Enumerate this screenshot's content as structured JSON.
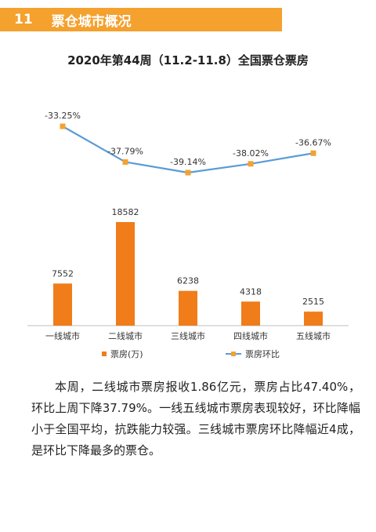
{
  "header": {
    "number": "11",
    "title": "票仓城市概况"
  },
  "chart_data": {
    "type": "bar",
    "title": "2020年第44周（11.2-11.8）全国票仓票房",
    "categories": [
      "一线城市",
      "二线城市",
      "三线城市",
      "四线城市",
      "五线城市"
    ],
    "series": [
      {
        "name": "票房(万)",
        "type": "bar",
        "values": [
          7552,
          18582,
          6238,
          4318,
          2515
        ],
        "labels": [
          "7552",
          "18582",
          "6238",
          "4318",
          "2515"
        ]
      },
      {
        "name": "票房环比",
        "type": "line",
        "values": [
          -33.25,
          -37.79,
          -39.14,
          -38.02,
          -36.67
        ],
        "labels": [
          "-33.25%",
          "-37.79%",
          "-39.14%",
          "-38.02%",
          "-36.67%"
        ]
      }
    ],
    "legend_position": "bottom",
    "grid": false,
    "colors": {
      "bar": "#f07d1a",
      "line": "#5b9bd5",
      "marker": "#f4a12e"
    }
  },
  "text": {
    "paragraph": "本周，二线城市票房报收1.86亿元，票房占比47.40%，环比上周下降37.79%。一线五线城市票房表现较好，环比降幅小于全国平均，抗跌能力较强。三线城市票房环比降幅近4成，是环比下降最多的票仓。"
  }
}
